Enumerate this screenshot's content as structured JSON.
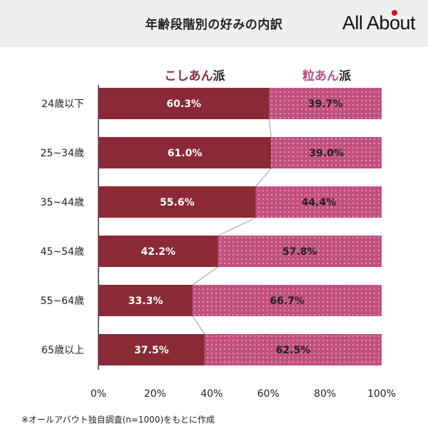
{
  "header": {
    "title": "年齢段階別の好みの内訳",
    "logo": "All About"
  },
  "legend": {
    "left_main": "こしあん",
    "left_suffix": "派",
    "right_main": "粒あん",
    "right_suffix": "派"
  },
  "footnote": "※オールアバウト独自調査(n=1000)をもとに作成",
  "colors": {
    "koshian": "#8b2a36",
    "tsubuan": "#c2507e",
    "tsubuan_dot": "#f3c6d8",
    "connector": "#aaaaaa"
  },
  "chart_data": {
    "type": "bar",
    "orientation": "horizontal",
    "stacked": true,
    "percent": true,
    "categories": [
      "24歳以下",
      "25~34歳",
      "35~44歳",
      "45~54歳",
      "55~64歳",
      "65歳以上"
    ],
    "series": [
      {
        "name": "こしあん派",
        "values": [
          60.3,
          61.0,
          55.6,
          42.2,
          33.3,
          37.5
        ]
      },
      {
        "name": "粒あん派",
        "values": [
          39.7,
          39.0,
          44.4,
          57.8,
          66.7,
          62.5
        ]
      }
    ],
    "data_labels": [
      [
        "60.3%",
        "61.0%",
        "55.6%",
        "42.2%",
        "33.3%",
        "37.5%"
      ],
      [
        "39.7%",
        "39.0%",
        "44.4%",
        "57.8%",
        "66.7%",
        "62.5%"
      ]
    ],
    "xlim": [
      0,
      100
    ],
    "xticks": [
      "0%",
      "20%",
      "40%",
      "60%",
      "80%",
      "100%"
    ],
    "grid": false,
    "legend_position": "top"
  }
}
